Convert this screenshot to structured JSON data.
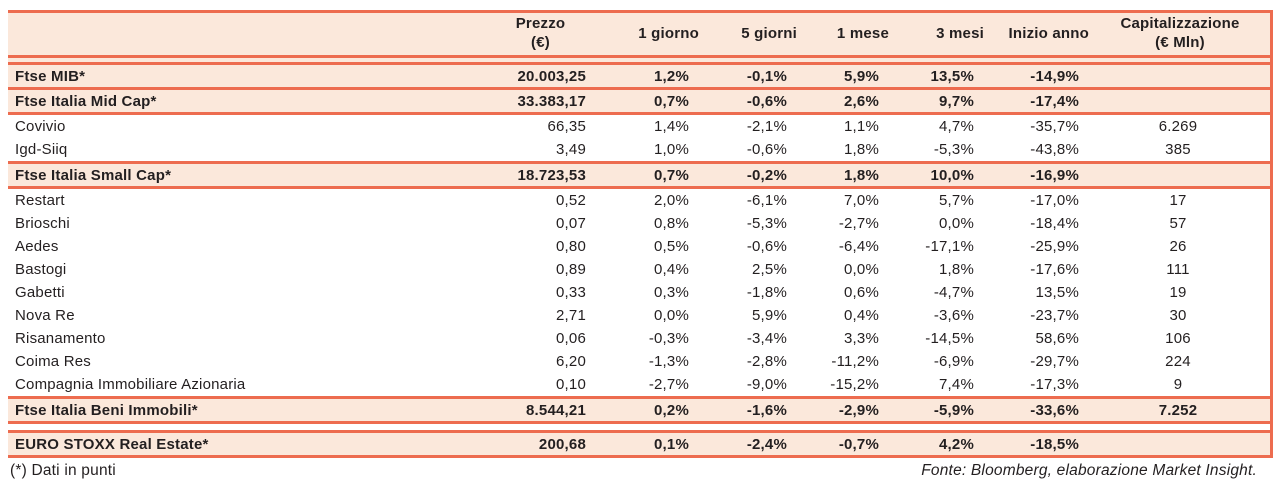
{
  "colors": {
    "accent_rule": "#ed6c4f",
    "highlight_bg": "#fbe8db",
    "text": "#231f20"
  },
  "table": {
    "headers": {
      "name": "",
      "prezzo": {
        "line1": "Prezzo",
        "line2": "(€)"
      },
      "d1": "1 giorno",
      "d5": "5 giorni",
      "m1": "1 mese",
      "m3": "3 mesi",
      "ytd": "Inizio anno",
      "cap": {
        "line1": "Capitalizzazione",
        "line2": "(€ Mln)"
      }
    },
    "rows": [
      {
        "name": "Ftse MIB*",
        "prezzo": "20.003,25",
        "d1": "1,2%",
        "d5": "-0,1%",
        "m1": "5,9%",
        "m3": "13,5%",
        "ytd": "-14,9%",
        "cap": "",
        "is_index": true,
        "rule_before": "double_peach"
      },
      {
        "name": "Ftse Italia Mid Cap*",
        "prezzo": "33.383,17",
        "d1": "0,7%",
        "d5": "-0,6%",
        "m1": "2,6%",
        "m3": "9,7%",
        "ytd": "-17,4%",
        "cap": "",
        "is_index": true,
        "rule_before": "single"
      },
      {
        "name": "Covivio",
        "prezzo": "66,35",
        "d1": "1,4%",
        "d5": "-2,1%",
        "m1": "1,1%",
        "m3": "4,7%",
        "ytd": "-35,7%",
        "cap": "6.269",
        "is_index": false,
        "rule_before": "single"
      },
      {
        "name": "Igd-Siiq",
        "prezzo": "3,49",
        "d1": "1,0%",
        "d5": "-0,6%",
        "m1": "1,8%",
        "m3": "-5,3%",
        "ytd": "-43,8%",
        "cap": "385",
        "is_index": false,
        "rule_before": "none"
      },
      {
        "name": "Ftse Italia Small Cap*",
        "prezzo": "18.723,53",
        "d1": "0,7%",
        "d5": "-0,2%",
        "m1": "1,8%",
        "m3": "10,0%",
        "ytd": "-16,9%",
        "cap": "",
        "is_index": true,
        "rule_before": "single"
      },
      {
        "name": "Restart",
        "prezzo": "0,52",
        "d1": "2,0%",
        "d5": "-6,1%",
        "m1": "7,0%",
        "m3": "5,7%",
        "ytd": "-17,0%",
        "cap": "17",
        "is_index": false,
        "rule_before": "single"
      },
      {
        "name": "Brioschi",
        "prezzo": "0,07",
        "d1": "0,8%",
        "d5": "-5,3%",
        "m1": "-2,7%",
        "m3": "0,0%",
        "ytd": "-18,4%",
        "cap": "57",
        "is_index": false,
        "rule_before": "none"
      },
      {
        "name": "Aedes",
        "prezzo": "0,80",
        "d1": "0,5%",
        "d5": "-0,6%",
        "m1": "-6,4%",
        "m3": "-17,1%",
        "ytd": "-25,9%",
        "cap": "26",
        "is_index": false,
        "rule_before": "none"
      },
      {
        "name": "Bastogi",
        "prezzo": "0,89",
        "d1": "0,4%",
        "d5": "2,5%",
        "m1": "0,0%",
        "m3": "1,8%",
        "ytd": "-17,6%",
        "cap": "111",
        "is_index": false,
        "rule_before": "none"
      },
      {
        "name": "Gabetti",
        "prezzo": "0,33",
        "d1": "0,3%",
        "d5": "-1,8%",
        "m1": "0,6%",
        "m3": "-4,7%",
        "ytd": "13,5%",
        "cap": "19",
        "is_index": false,
        "rule_before": "none"
      },
      {
        "name": "Nova Re",
        "prezzo": "2,71",
        "d1": "0,0%",
        "d5": "5,9%",
        "m1": "0,4%",
        "m3": "-3,6%",
        "ytd": "-23,7%",
        "cap": "30",
        "is_index": false,
        "rule_before": "none"
      },
      {
        "name": "Risanamento",
        "prezzo": "0,06",
        "d1": "-0,3%",
        "d5": "-3,4%",
        "m1": "3,3%",
        "m3": "-14,5%",
        "ytd": "58,6%",
        "cap": "106",
        "is_index": false,
        "rule_before": "none"
      },
      {
        "name": "Coima Res",
        "prezzo": "6,20",
        "d1": "-1,3%",
        "d5": "-2,8%",
        "m1": "-11,2%",
        "m3": "-6,9%",
        "ytd": "-29,7%",
        "cap": "224",
        "is_index": false,
        "rule_before": "none"
      },
      {
        "name": "Compagnia Immobiliare Azionaria",
        "prezzo": "0,10",
        "d1": "-2,7%",
        "d5": "-9,0%",
        "m1": "-15,2%",
        "m3": "7,4%",
        "ytd": "-17,3%",
        "cap": "9",
        "is_index": false,
        "rule_before": "none"
      },
      {
        "name": "Ftse Italia Beni Immobili*",
        "prezzo": "8.544,21",
        "d1": "0,2%",
        "d5": "-1,6%",
        "m1": "-2,9%",
        "m3": "-5,9%",
        "ytd": "-33,6%",
        "cap": "7.252",
        "is_index": true,
        "rule_before": "single"
      },
      {
        "name": "EURO STOXX Real Estate*",
        "prezzo": "200,68",
        "d1": "0,1%",
        "d5": "-2,4%",
        "m1": "-0,7%",
        "m3": "4,2%",
        "ytd": "-18,5%",
        "cap": "",
        "is_index": true,
        "rule_before": "double_white"
      }
    ]
  },
  "footer": {
    "note_left": "(*) Dati in punti",
    "source_right": "Fonte: Bloomberg, elaborazione Market Insight."
  }
}
